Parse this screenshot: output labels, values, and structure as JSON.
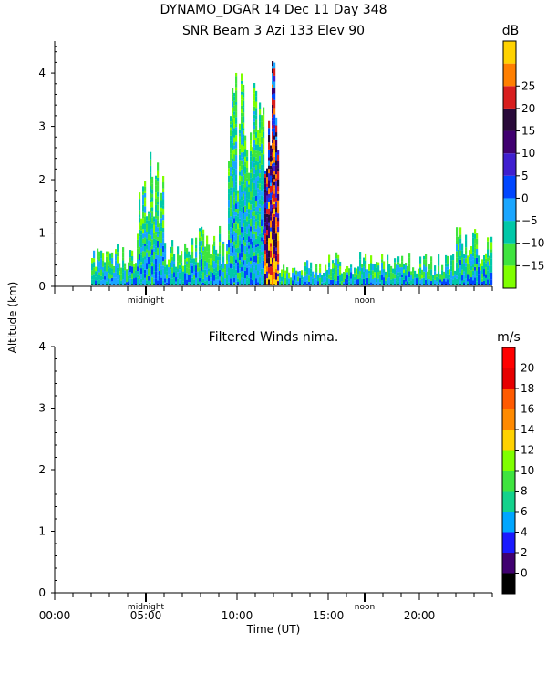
{
  "title_line1": "DYNAMO_DGAR  14 Dec 11 Day 348",
  "ylabel": "Altitude (km)",
  "xlabel": "Time (UT)",
  "markers": [
    "midnight",
    "noon"
  ],
  "x_ticks": [
    "00:00",
    "05:00",
    "10:00",
    "15:00",
    "20:00"
  ],
  "chart_data": [
    {
      "type": "heatmap",
      "title": "SNR Beam 3 Azi 133 Elev 90",
      "y_ticks": [
        "0",
        "1",
        "2",
        "3",
        "4"
      ],
      "ylim": [
        0,
        4.6
      ],
      "colorbar": {
        "unit": "dB",
        "levels": [
          "−15",
          "−10",
          "−5",
          "0",
          "5",
          "10",
          "15",
          "20",
          "25"
        ],
        "colors": [
          "#7fff00",
          "#3fe43f",
          "#00c8a8",
          "#1aa6ff",
          "#0046ff",
          "#3f1fcf",
          "#400070",
          "#2a0a3a",
          "#d81e1e",
          "#ff7f00",
          "#ffd200"
        ]
      },
      "echo_regions": [
        {
          "t_start": 2.0,
          "t_end": 4.5,
          "top_km": 0.7
        },
        {
          "t_start": 4.5,
          "t_end": 6.0,
          "top_km": 2.4
        },
        {
          "t_start": 6.0,
          "t_end": 7.5,
          "top_km": 0.8
        },
        {
          "t_start": 7.5,
          "t_end": 9.5,
          "top_km": 1.1
        },
        {
          "t_start": 9.5,
          "t_end": 11.5,
          "top_km": 4.0
        },
        {
          "t_start": 11.5,
          "t_end": 12.3,
          "top_km": 4.6
        },
        {
          "t_start": 12.3,
          "t_end": 15.0,
          "top_km": 0.4
        },
        {
          "t_start": 15.0,
          "t_end": 22.0,
          "top_km": 0.6
        },
        {
          "t_start": 22.0,
          "t_end": 24.0,
          "top_km": 1.1
        }
      ]
    },
    {
      "type": "heatmap",
      "title": "Filtered Winds nima.",
      "y_ticks": [
        "0",
        "1",
        "2",
        "3",
        "4"
      ],
      "ylim": [
        0,
        4.0
      ],
      "colorbar": {
        "unit": "m/s",
        "levels": [
          "0",
          "2",
          "4",
          "6",
          "8",
          "10",
          "12",
          "14",
          "16",
          "18",
          "20"
        ],
        "colors": [
          "#000000",
          "#400070",
          "#1a1aff",
          "#00a6ff",
          "#14d28c",
          "#3fe43f",
          "#7fff00",
          "#ffd200",
          "#ff8a00",
          "#ff5a00",
          "#e60000",
          "#ff0000"
        ]
      },
      "values": []
    }
  ]
}
